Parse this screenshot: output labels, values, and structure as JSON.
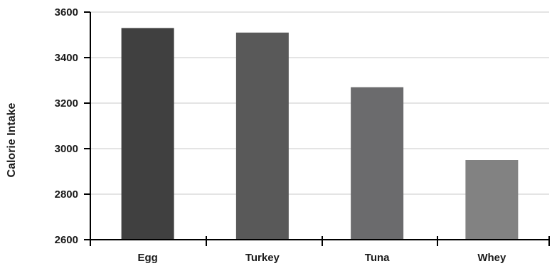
{
  "chart_data": {
    "type": "bar",
    "categories": [
      "Egg",
      "Turkey",
      "Tuna",
      "Whey"
    ],
    "values": [
      3530,
      3510,
      3270,
      2950
    ],
    "bar_colors": [
      "#404040",
      "#595959",
      "#6b6b6d",
      "#828282"
    ],
    "title": "",
    "xlabel": "",
    "ylabel": "Calorie Intake",
    "ylim": [
      2600,
      3600
    ],
    "yticks": [
      2600,
      2800,
      3000,
      3200,
      3400,
      3600
    ],
    "ytick_labels": [
      "2600",
      "2800",
      "3000",
      "3200",
      "3400",
      "3600"
    ],
    "grid": true,
    "grid_axis": "y",
    "grid_color": "#c8c8c8",
    "axis_color": "#000000",
    "legend": "none"
  }
}
